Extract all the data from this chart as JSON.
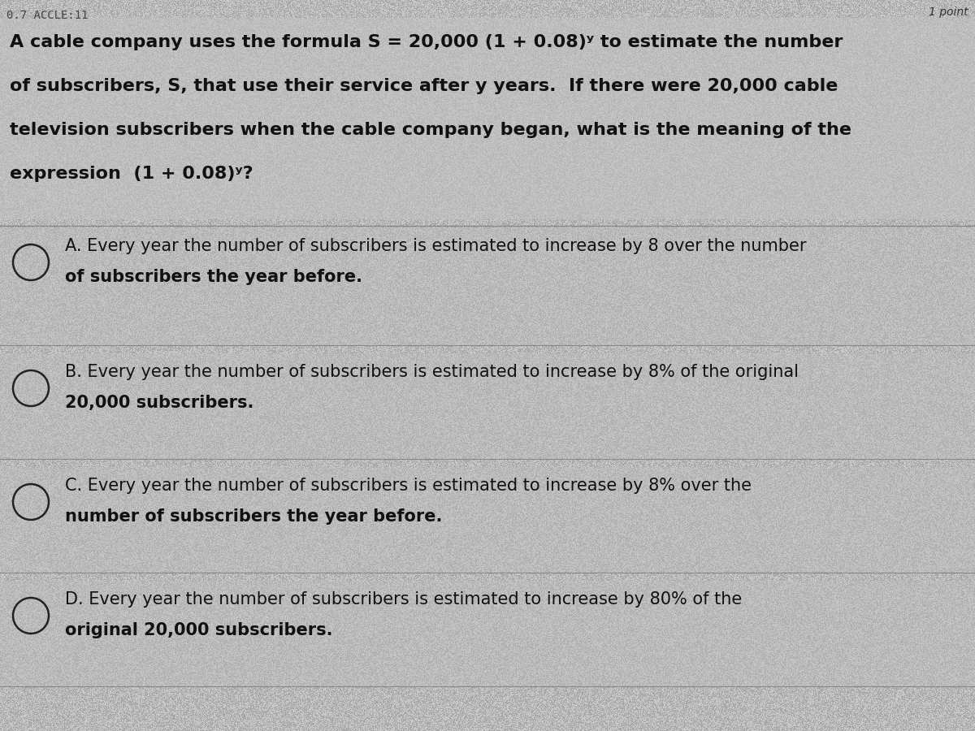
{
  "background_color": "#b8b8b8",
  "text_color": "#111111",
  "question_lines": [
    "A cable company uses the formula S = 20,000 (1 + 0.08)ʸ to estimate the number",
    "of subscribers, S, that use their service after y years.  If there were 20,000 cable",
    "television subscribers when the cable company began, what is the meaning of the",
    "expression  (1 + 0.08)ʸ?"
  ],
  "option_lines": [
    [
      "A. Every year the number of subscribers is estimated to increase by 8 over the number",
      "of subscribers the year before."
    ],
    [
      "B. Every year the number of subscribers is estimated to increase by 8% of the original",
      "20,000 subscribers."
    ],
    [
      "C. Every year the number of subscribers is estimated to increase by 8% over the",
      "number of subscribers the year before."
    ],
    [
      "D. Every year the number of subscribers is estimated to increase by 80% of the",
      "original 20,000 subscribers."
    ]
  ],
  "header_left": "0.7 ACCLE:11",
  "header_right": "1 point",
  "divider_color": "#888888",
  "circle_color": "#222222",
  "question_fontsize": 16,
  "option_fontsize": 15,
  "header_fontsize": 10,
  "noise_color1": "#c8c8c8",
  "noise_color2": "#a8a8a8"
}
